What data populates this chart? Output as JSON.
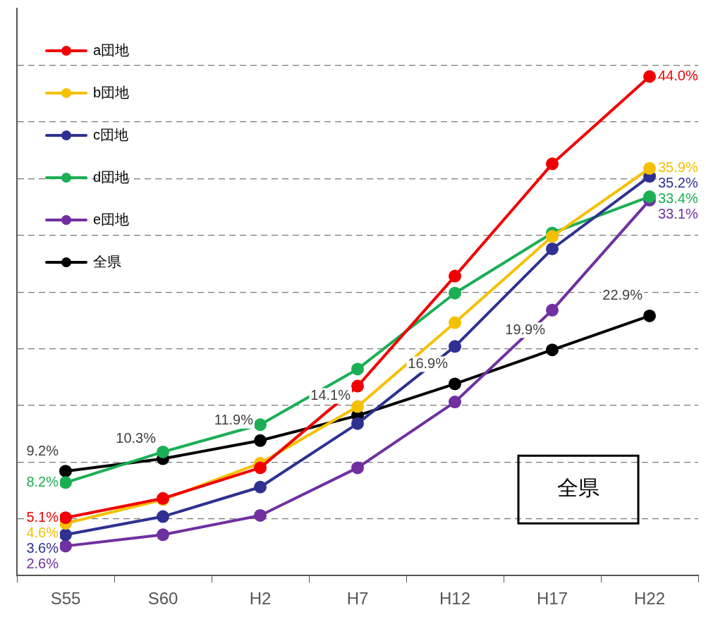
{
  "chart_data": {
    "type": "line",
    "categories": [
      "S55",
      "S60",
      "H2",
      "H7",
      "H12",
      "H17",
      "H22"
    ],
    "series": [
      {
        "name": "a団地",
        "color": "#f00000",
        "values": [
          5.1,
          6.8,
          9.5,
          16.7,
          26.4,
          36.3,
          44.0
        ],
        "value_labels": [
          "5.1%",
          null,
          null,
          null,
          null,
          null,
          "44.0%"
        ]
      },
      {
        "name": "b団地",
        "color": "#f5c000",
        "values": [
          4.6,
          6.7,
          9.9,
          14.9,
          22.3,
          29.9,
          35.9
        ],
        "value_labels": [
          "4.6%",
          null,
          null,
          null,
          null,
          null,
          "35.9%"
        ]
      },
      {
        "name": "c団地",
        "color": "#2e3192",
        "values": [
          3.6,
          5.2,
          7.8,
          13.4,
          20.2,
          28.8,
          35.2
        ],
        "value_labels": [
          "3.6%",
          null,
          null,
          null,
          null,
          null,
          "35.2%"
        ]
      },
      {
        "name": "d団地",
        "color": "#1aaf54",
        "values": [
          8.2,
          10.9,
          13.3,
          18.2,
          24.9,
          30.2,
          33.4
        ],
        "value_labels": [
          "8.2%",
          null,
          null,
          null,
          null,
          null,
          "33.4%"
        ]
      },
      {
        "name": "e団地",
        "color": "#7030a0",
        "values": [
          2.6,
          3.6,
          5.3,
          9.5,
          15.3,
          23.4,
          33.1
        ],
        "value_labels": [
          "2.6%",
          null,
          null,
          null,
          null,
          null,
          "33.1%"
        ]
      },
      {
        "name": "全県",
        "color": "#000000",
        "values": [
          9.2,
          10.3,
          11.9,
          14.1,
          16.9,
          19.9,
          22.9
        ],
        "value_labels": [
          "9.2%",
          "10.3%",
          "11.9%",
          "14.1%",
          "16.9%",
          "19.9%",
          "22.9%"
        ]
      }
    ],
    "ylim": [
      0,
      50
    ],
    "yticks": [
      {
        "value": 5,
        "label": null
      },
      {
        "value": 10,
        "label": null
      },
      {
        "value": 15,
        "label": null
      },
      {
        "value": 20,
        "label": null
      },
      {
        "value": 25,
        "label": null
      },
      {
        "value": 30,
        "label": null
      },
      {
        "value": 35,
        "label": null
      },
      {
        "value": 40,
        "label": null
      },
      {
        "value": 45,
        "label": null
      }
    ],
    "tick_labels": "x",
    "grid": "y",
    "legend": "top left",
    "marker": "circle",
    "line_style": "solid",
    "annotations": [
      "全県"
    ]
  }
}
